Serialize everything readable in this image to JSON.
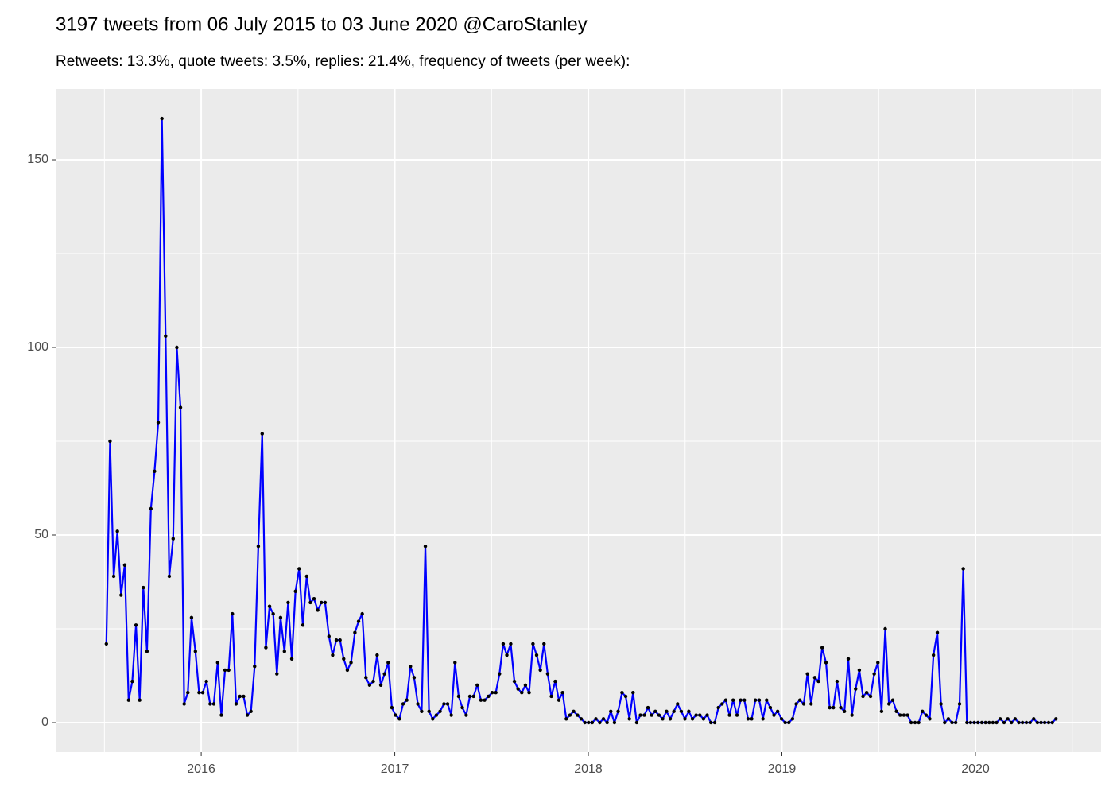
{
  "chart_data": {
    "type": "line",
    "title": "3197 tweets from 06 July 2015 to 03 June 2020 @CaroStanley",
    "subtitle": "Retweets: 13.3%, quote tweets: 3.5%, replies: 21.4%, frequency of tweets (per week):",
    "x": [
      2015.51,
      2015.529,
      2015.548,
      2015.567,
      2015.586,
      2015.605,
      2015.625,
      2015.644,
      2015.663,
      2015.682,
      2015.701,
      2015.72,
      2015.74,
      2015.759,
      2015.778,
      2015.797,
      2015.816,
      2015.835,
      2015.855,
      2015.874,
      2015.893,
      2015.912,
      2015.931,
      2015.95,
      2015.97,
      2015.989,
      2016.008,
      2016.027,
      2016.046,
      2016.065,
      2016.085,
      2016.104,
      2016.123,
      2016.142,
      2016.161,
      2016.18,
      2016.2,
      2016.219,
      2016.238,
      2016.257,
      2016.276,
      2016.295,
      2016.315,
      2016.334,
      2016.353,
      2016.372,
      2016.391,
      2016.41,
      2016.43,
      2016.449,
      2016.468,
      2016.487,
      2016.506,
      2016.525,
      2016.545,
      2016.564,
      2016.583,
      2016.602,
      2016.621,
      2016.64,
      2016.66,
      2016.679,
      2016.698,
      2016.717,
      2016.736,
      2016.755,
      2016.774,
      2016.794,
      2016.813,
      2016.832,
      2016.851,
      2016.87,
      2016.889,
      2016.909,
      2016.928,
      2016.947,
      2016.966,
      2016.985,
      2017.004,
      2017.024,
      2017.043,
      2017.062,
      2017.081,
      2017.1,
      2017.119,
      2017.139,
      2017.158,
      2017.177,
      2017.196,
      2017.215,
      2017.234,
      2017.254,
      2017.273,
      2017.292,
      2017.311,
      2017.33,
      2017.349,
      2017.369,
      2017.388,
      2017.407,
      2017.426,
      2017.445,
      2017.464,
      2017.484,
      2017.503,
      2017.522,
      2017.541,
      2017.56,
      2017.579,
      2017.599,
      2017.618,
      2017.637,
      2017.656,
      2017.675,
      2017.694,
      2017.714,
      2017.733,
      2017.752,
      2017.771,
      2017.79,
      2017.809,
      2017.829,
      2017.848,
      2017.867,
      2017.886,
      2017.905,
      2017.924,
      2017.944,
      2017.963,
      2017.982,
      2018.001,
      2018.02,
      2018.039,
      2018.059,
      2018.078,
      2018.097,
      2018.116,
      2018.135,
      2018.154,
      2018.174,
      2018.193,
      2018.212,
      2018.231,
      2018.25,
      2018.269,
      2018.289,
      2018.308,
      2018.327,
      2018.346,
      2018.365,
      2018.384,
      2018.404,
      2018.423,
      2018.442,
      2018.461,
      2018.48,
      2018.499,
      2018.519,
      2018.538,
      2018.557,
      2018.576,
      2018.595,
      2018.614,
      2018.633,
      2018.653,
      2018.672,
      2018.691,
      2018.71,
      2018.729,
      2018.748,
      2018.768,
      2018.787,
      2018.806,
      2018.825,
      2018.844,
      2018.863,
      2018.883,
      2018.902,
      2018.921,
      2018.94,
      2018.959,
      2018.978,
      2018.998,
      2019.017,
      2019.036,
      2019.055,
      2019.074,
      2019.093,
      2019.113,
      2019.132,
      2019.151,
      2019.17,
      2019.189,
      2019.208,
      2019.228,
      2019.247,
      2019.266,
      2019.285,
      2019.304,
      2019.323,
      2019.343,
      2019.362,
      2019.381,
      2019.4,
      2019.419,
      2019.438,
      2019.458,
      2019.477,
      2019.496,
      2019.515,
      2019.534,
      2019.553,
      2019.573,
      2019.592,
      2019.611,
      2019.63,
      2019.649,
      2019.668,
      2019.688,
      2019.707,
      2019.726,
      2019.745,
      2019.764,
      2019.783,
      2019.803,
      2019.822,
      2019.841,
      2019.86,
      2019.879,
      2019.898,
      2019.918,
      2019.937,
      2019.956,
      2019.975,
      2019.994,
      2020.013,
      2020.033,
      2020.052,
      2020.071,
      2020.09,
      2020.109,
      2020.128,
      2020.148,
      2020.167,
      2020.186,
      2020.205,
      2020.224,
      2020.243,
      2020.263,
      2020.282,
      2020.301,
      2020.32,
      2020.339,
      2020.358,
      2020.378,
      2020.397,
      2020.416
    ],
    "values": [
      21,
      75,
      39,
      51,
      34,
      42,
      6,
      11,
      26,
      6,
      36,
      19,
      57,
      67,
      80,
      161,
      103,
      39,
      49,
      100,
      84,
      5,
      8,
      28,
      19,
      8,
      8,
      11,
      5,
      5,
      16,
      2,
      14,
      14,
      29,
      5,
      7,
      7,
      2,
      3,
      15,
      47,
      77,
      20,
      31,
      29,
      13,
      28,
      19,
      32,
      17,
      35,
      41,
      26,
      39,
      32,
      33,
      30,
      32,
      32,
      23,
      18,
      22,
      22,
      17,
      14,
      16,
      24,
      27,
      29,
      12,
      10,
      11,
      18,
      10,
      13,
      16,
      4,
      2,
      1,
      5,
      6,
      15,
      12,
      5,
      3,
      47,
      3,
      1,
      2,
      3,
      5,
      5,
      2,
      16,
      7,
      4,
      2,
      7,
      7,
      10,
      6,
      6,
      7,
      8,
      8,
      13,
      21,
      18,
      21,
      11,
      9,
      8,
      10,
      8,
      21,
      18,
      14,
      21,
      13,
      7,
      11,
      6,
      8,
      1,
      2,
      3,
      2,
      1,
      0,
      0,
      0,
      1,
      0,
      1,
      0,
      3,
      0,
      3,
      8,
      7,
      1,
      8,
      0,
      2,
      2,
      4,
      2,
      3,
      2,
      1,
      3,
      1,
      3,
      5,
      3,
      1,
      3,
      1,
      2,
      2,
      1,
      2,
      0,
      0,
      4,
      5,
      6,
      2,
      6,
      2,
      6,
      6,
      1,
      1,
      6,
      6,
      1,
      6,
      4,
      2,
      3,
      1,
      0,
      0,
      1,
      5,
      6,
      5,
      13,
      5,
      12,
      11,
      20,
      16,
      4,
      4,
      11,
      4,
      3,
      17,
      2,
      9,
      14,
      7,
      8,
      7,
      13,
      16,
      3,
      25,
      5,
      6,
      3,
      2,
      2,
      2,
      0,
      0,
      0,
      3,
      2,
      1,
      18,
      24,
      5,
      0,
      1,
      0,
      0,
      5,
      41,
      0,
      0,
      0,
      0,
      0,
      0,
      0,
      0,
      0,
      1,
      0,
      1,
      0,
      1,
      0,
      0,
      0,
      0,
      1,
      0,
      0,
      0,
      0,
      0,
      1
    ],
    "color": "#0000ff",
    "point_color": "#000000",
    "xlim": [
      2015.248,
      2020.649
    ],
    "xticks": [
      2016,
      2017,
      2018,
      2019,
      2020
    ],
    "ylim": [
      -7.84,
      168.86
    ],
    "yticks": [
      0,
      50,
      100,
      150
    ],
    "grid": true
  }
}
